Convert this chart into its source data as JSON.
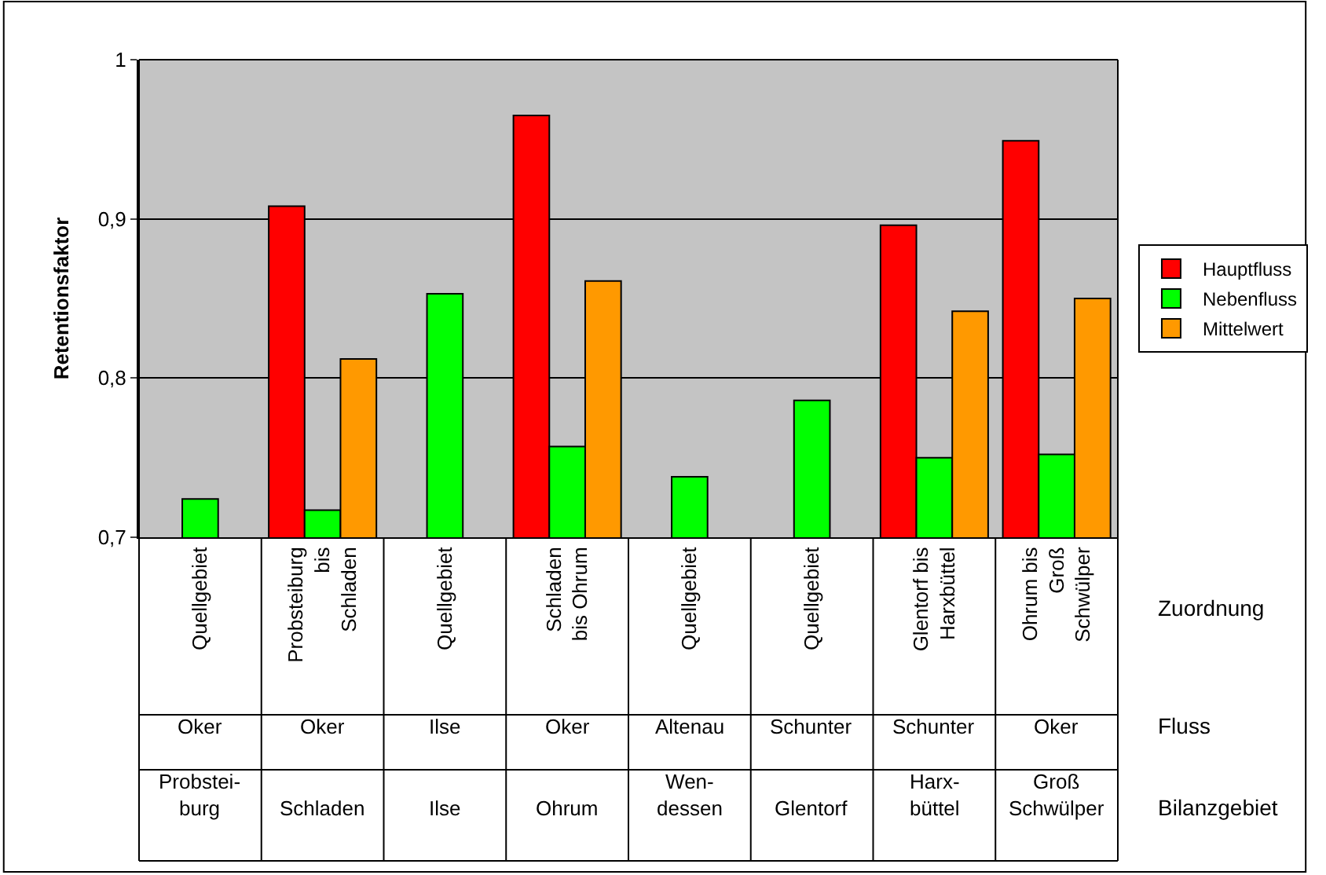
{
  "chart_data": {
    "type": "bar",
    "ylabel": "Retentionsfaktor",
    "categories": [
      "Quellgebiet",
      "Probsteiburg\nbis\nSchladen",
      "Quellgebiet",
      "Schladen\nbis Ohrum",
      "Quellgebiet",
      "Quellgebiet",
      "Glentorf bis\nHarxbüttel",
      "Ohrum bis\nGroß\nSchwülper"
    ],
    "series": [
      {
        "name": "Hauptfluss",
        "color": "#ff0000",
        "values": [
          null,
          0.908,
          null,
          0.965,
          null,
          null,
          0.896,
          0.949
        ]
      },
      {
        "name": "Nebenfluss",
        "color": "#00ff00",
        "values": [
          0.724,
          0.717,
          0.853,
          0.757,
          0.738,
          0.786,
          0.75,
          0.752
        ]
      },
      {
        "name": "Mittelwert",
        "color": "#ff9900",
        "values": [
          null,
          0.812,
          null,
          0.861,
          null,
          null,
          0.842,
          0.85
        ]
      }
    ],
    "ylim": [
      0.7,
      1
    ],
    "yticks": [
      {
        "value": 0.7,
        "label": "0,7"
      },
      {
        "value": 0.8,
        "label": "0,8"
      },
      {
        "value": 0.9,
        "label": "0,9"
      },
      1
    ],
    "grid": "y",
    "legend": "right",
    "annotations": [
      "Zuordnung",
      "Oker",
      "Oker",
      "Ilse",
      "Oker",
      "Altenau",
      "Schunter",
      "Schunter",
      "Oker",
      "Fluss",
      "Probstei-\nburg",
      "Schladen",
      "Ilse",
      "Ohrum",
      "Wen-\ndessen",
      "Glentorf",
      "Harx-\nbüttel",
      "Groß\nSchwülper",
      "Bilanzgebiet"
    ]
  }
}
